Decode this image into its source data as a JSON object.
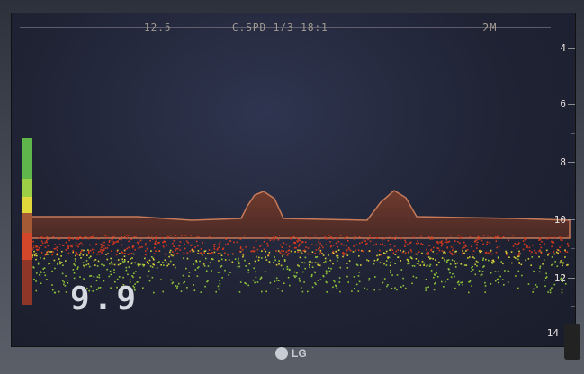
{
  "header": {
    "left_label": "12.5",
    "center_label": "C.SPD 1/3 18:1",
    "right_label": "2M"
  },
  "depth_scale": {
    "labels": [
      "4",
      "6",
      "8",
      "10",
      "12",
      "14"
    ]
  },
  "readout": {
    "depth": "9.9"
  },
  "monitor": {
    "brand": "LG"
  },
  "colors": {
    "seabed_bottom": "#8a3a25",
    "echo_red": "#d33a1e",
    "echo_green": "#8fc43a",
    "echo_yellow": "#d8cf3a"
  }
}
